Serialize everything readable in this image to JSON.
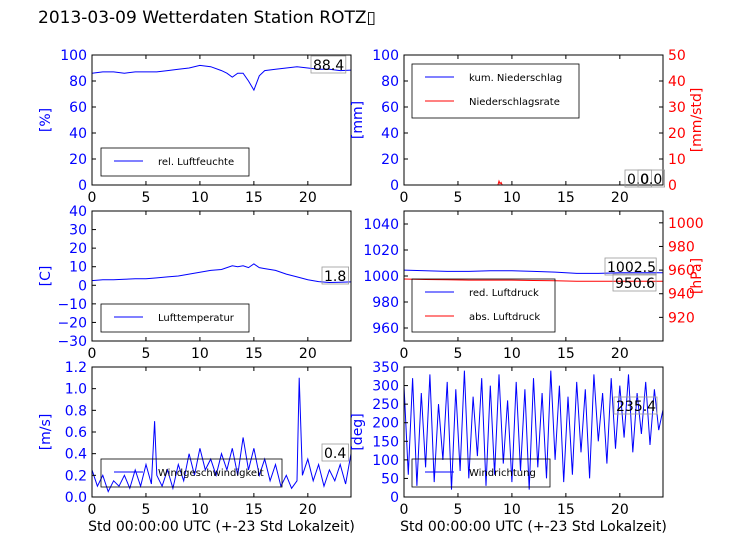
{
  "title": "2013-03-09 Wetterdaten Station ROTZ▯",
  "colors": {
    "primary": "#0000ff",
    "secondary": "#ff0000",
    "axis": "#000000"
  },
  "xlabel": "Std 00:00:00 UTC (+-23 Std Lokalzeit)",
  "chart_data": [
    {
      "type": "line",
      "ylabel": "[%]",
      "ylim": [
        0,
        100
      ],
      "yticks": [
        "0",
        "20",
        "40",
        "60",
        "80",
        "100"
      ],
      "xlim": [
        0,
        24
      ],
      "xticks": [
        "0",
        "5",
        "10",
        "15",
        "20"
      ],
      "current_value": "88.4",
      "legend": {
        "placement": "lower-left",
        "entries": [
          "rel. Luftfeuchte"
        ]
      },
      "series": [
        {
          "name": "rel. Luftfeuchte",
          "color": "#0000ff",
          "axis": "left",
          "x": [
            0,
            1,
            2,
            3,
            4,
            5,
            6,
            7,
            8,
            9,
            10,
            11,
            12,
            12.5,
            13,
            13.5,
            14,
            14.5,
            15,
            15.5,
            16,
            17,
            18,
            19,
            20,
            21,
            22,
            23,
            24
          ],
          "y": [
            86,
            87,
            87,
            86,
            87,
            87,
            87,
            88,
            89,
            90,
            92,
            91,
            88,
            86,
            83,
            86,
            86,
            80,
            73,
            84,
            88,
            89,
            90,
            91,
            90,
            89,
            89,
            88,
            88.4
          ]
        }
      ]
    },
    {
      "type": "line",
      "ylabel": "[mm]",
      "ylabel2": "[mm/std]",
      "ylim": [
        0,
        100
      ],
      "ylim2": [
        0,
        50
      ],
      "yticks": [
        "0",
        "20",
        "40",
        "60",
        "80",
        "100"
      ],
      "yticks2": [
        "0",
        "10",
        "20",
        "30",
        "40",
        "50"
      ],
      "xlim": [
        0,
        24
      ],
      "xticks": [
        "0",
        "5",
        "10",
        "15",
        "20"
      ],
      "current_value": "0.0",
      "current_value2": "0.0",
      "legend": {
        "placement": "upper-left",
        "entries": [
          "kum. Niederschlag",
          "Niederschlagsrate"
        ]
      },
      "series": [
        {
          "name": "kum. Niederschlag",
          "color": "#0000ff",
          "axis": "left",
          "x": [
            0,
            24
          ],
          "y": [
            0,
            0
          ]
        },
        {
          "name": "Niederschlagsrate",
          "color": "#ff0000",
          "axis": "right",
          "x": [
            0,
            8.7,
            8.8,
            8.9,
            9.0,
            9.1,
            24
          ],
          "y": [
            0,
            0,
            1.5,
            0.5,
            1.0,
            0,
            0
          ]
        }
      ]
    },
    {
      "type": "line",
      "ylabel": "[C]",
      "ylim": [
        -30,
        40
      ],
      "yticks": [
        "−30",
        "−20",
        "−10",
        "0",
        "10",
        "20",
        "30",
        "40"
      ],
      "xlim": [
        0,
        24
      ],
      "xticks": [
        "0",
        "5",
        "10",
        "15",
        "20"
      ],
      "current_value": "1.8",
      "legend": {
        "placement": "lower-left",
        "entries": [
          "Lufttemperatur"
        ]
      },
      "series": [
        {
          "name": "Lufttemperatur",
          "color": "#0000ff",
          "axis": "left",
          "x": [
            0,
            1,
            2,
            3,
            4,
            5,
            6,
            7,
            8,
            9,
            10,
            11,
            12,
            13,
            13.5,
            14,
            14.5,
            15,
            15.5,
            16,
            17,
            18,
            19,
            20,
            21,
            22,
            23,
            24
          ],
          "y": [
            2.5,
            3,
            3,
            3.2,
            3.5,
            3.5,
            4,
            4.5,
            5,
            6,
            7,
            8,
            8.5,
            10.5,
            10,
            10.5,
            9.5,
            11.5,
            9.5,
            9,
            8,
            6,
            4.5,
            3,
            2,
            1.5,
            1.6,
            1.8
          ]
        }
      ]
    },
    {
      "type": "line",
      "ylabel2": "[hPa]",
      "ylim": [
        950,
        1050
      ],
      "ylim2": [
        900,
        1010
      ],
      "yticks": [
        "960",
        "980",
        "1000",
        "1020",
        "1040"
      ],
      "yticks2": [
        "920",
        "940",
        "960",
        "980",
        "1000"
      ],
      "xlim": [
        0,
        24
      ],
      "xticks": [
        "0",
        "5",
        "10",
        "15",
        "20"
      ],
      "current_value": "1002.5",
      "current_value2": "950.6",
      "legend": {
        "placement": "lower-left",
        "entries": [
          "red. Luftdruck",
          "abs. Luftdruck"
        ]
      },
      "series": [
        {
          "name": "red. Luftdruck",
          "color": "#0000ff",
          "axis": "left",
          "x": [
            0,
            2,
            4,
            6,
            8,
            10,
            12,
            14,
            16,
            18,
            20,
            22,
            24
          ],
          "y": [
            1004.5,
            1004,
            1003.5,
            1003.5,
            1004,
            1004,
            1003.5,
            1003,
            1002,
            1002,
            1002.5,
            1002.5,
            1002.5
          ]
        },
        {
          "name": "abs. Luftdruck",
          "color": "#ff0000",
          "axis": "right",
          "x": [
            0,
            2,
            4,
            6,
            8,
            10,
            12,
            14,
            16,
            18,
            20,
            22,
            24
          ],
          "y": [
            952.5,
            952,
            951.8,
            951.5,
            951.5,
            951.5,
            951.2,
            951,
            950.5,
            950.5,
            950.6,
            950.6,
            950.6
          ]
        }
      ]
    },
    {
      "type": "line",
      "ylabel": "[m/s]",
      "ylim": [
        0,
        1.2
      ],
      "yticks": [
        "0.0",
        "0.2",
        "0.4",
        "0.6",
        "0.8",
        "1.0",
        "1.2"
      ],
      "xlim": [
        0,
        24
      ],
      "xticks": [
        "0",
        "5",
        "10",
        "15",
        "20"
      ],
      "current_value": "0.4",
      "legend": {
        "placement": "lower-left",
        "entries": [
          "Windgeschwindigkeit"
        ]
      },
      "series": [
        {
          "name": "Windgeschwindigkeit",
          "color": "#0000ff",
          "axis": "left",
          "x": [
            0,
            0.5,
            1,
            1.5,
            2,
            2.5,
            3,
            3.5,
            4,
            4.5,
            5,
            5.5,
            5.8,
            6,
            6.5,
            7,
            7.5,
            8,
            8.5,
            9,
            9.5,
            10,
            10.5,
            11,
            11.5,
            12,
            12.5,
            13,
            13.5,
            14,
            14.5,
            15,
            15.5,
            16,
            16.5,
            17,
            17.5,
            18,
            18.5,
            19,
            19.2,
            19.5,
            20,
            20.5,
            21,
            21.5,
            22,
            22.5,
            23,
            23.5,
            24
          ],
          "y": [
            0.25,
            0.1,
            0.2,
            0.05,
            0.15,
            0.1,
            0.2,
            0.08,
            0.25,
            0.1,
            0.3,
            0.12,
            0.7,
            0.2,
            0.1,
            0.25,
            0.08,
            0.3,
            0.15,
            0.4,
            0.2,
            0.45,
            0.25,
            0.35,
            0.2,
            0.4,
            0.25,
            0.45,
            0.2,
            0.55,
            0.25,
            0.45,
            0.2,
            0.35,
            0.15,
            0.3,
            0.1,
            0.2,
            0.08,
            0.15,
            1.1,
            0.2,
            0.35,
            0.15,
            0.3,
            0.1,
            0.25,
            0.15,
            0.3,
            0.12,
            0.4
          ]
        }
      ]
    },
    {
      "type": "line",
      "ylabel": "[deg]",
      "ylim": [
        0,
        350
      ],
      "yticks": [
        "0",
        "50",
        "100",
        "150",
        "200",
        "250",
        "300",
        "350"
      ],
      "xlim": [
        0,
        24
      ],
      "xticks": [
        "0",
        "5",
        "10",
        "15",
        "20"
      ],
      "current_value": "235.4",
      "legend": {
        "placement": "lower-left",
        "entries": [
          "Windrichtung"
        ]
      },
      "series": [
        {
          "name": "Windrichtung",
          "color": "#0000ff",
          "axis": "left",
          "x": [
            0,
            0.4,
            0.8,
            1.2,
            1.6,
            2,
            2.4,
            2.8,
            3.2,
            3.6,
            4,
            4.4,
            4.8,
            5.2,
            5.6,
            6,
            6.4,
            6.8,
            7.2,
            7.6,
            8,
            8.4,
            8.8,
            9.2,
            9.6,
            10,
            10.4,
            10.8,
            11.2,
            11.6,
            12,
            12.4,
            12.8,
            13.2,
            13.6,
            14,
            14.4,
            14.8,
            15.2,
            15.6,
            16,
            16.4,
            16.8,
            17.2,
            17.6,
            18,
            18.4,
            18.8,
            19.2,
            19.6,
            20,
            20.4,
            20.8,
            21.2,
            21.6,
            22,
            22.4,
            22.8,
            23.2,
            23.6,
            24
          ],
          "y": [
            300,
            60,
            320,
            30,
            280,
            80,
            330,
            40,
            250,
            100,
            310,
            20,
            290,
            70,
            340,
            50,
            270,
            110,
            320,
            30,
            300,
            60,
            330,
            90,
            260,
            40,
            310,
            70,
            290,
            20,
            320,
            80,
            280,
            50,
            340,
            100,
            300,
            40,
            270,
            60,
            310,
            120,
            290,
            50,
            330,
            150,
            280,
            90,
            320,
            130,
            300,
            160,
            330,
            120,
            280,
            170,
            310,
            140,
            290,
            180,
            235
          ]
        }
      ]
    }
  ]
}
